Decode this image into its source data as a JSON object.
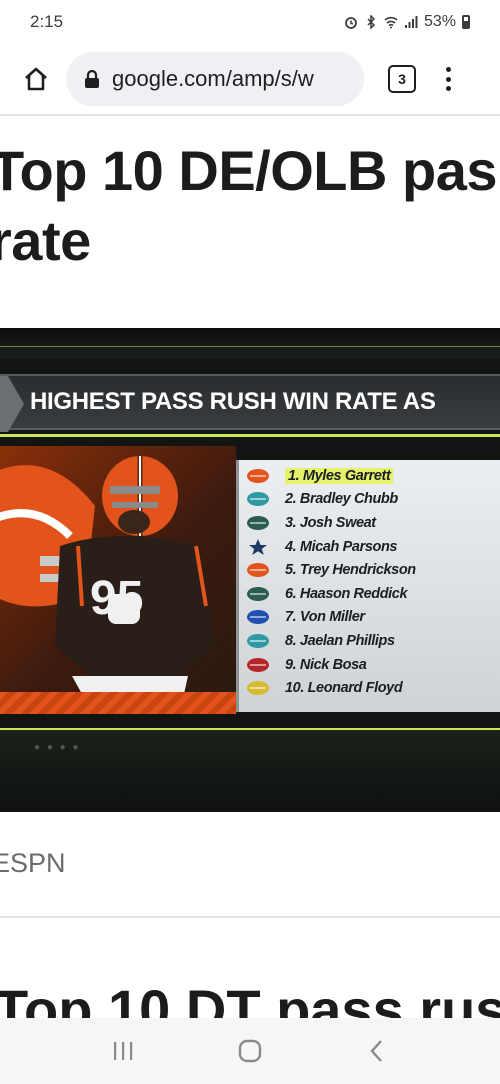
{
  "status_bar": {
    "time": "2:15",
    "battery": "53%"
  },
  "toolbar": {
    "url": "google.com/amp/s/w",
    "tab_count": "3"
  },
  "article": {
    "title_line1": "Top 10 DE/OLB pas",
    "title_line2": "rate",
    "image": {
      "banner": "HIGHEST PASS RUSH WIN RATE AS",
      "jersey_number": "95",
      "rankings": [
        {
          "text": "1. Myles Garrett",
          "team_icon": "browns-helmet-icon",
          "color": "#e2541b"
        },
        {
          "text": "2. Bradley Chubb",
          "team_icon": "dolphins-icon",
          "color": "#2f9aa3"
        },
        {
          "text": "3. Josh Sweat",
          "team_icon": "eagles-icon",
          "color": "#2a5d4f"
        },
        {
          "text": "4. Micah Parsons",
          "team_icon": "cowboys-star-icon",
          "color": "#1d3a66"
        },
        {
          "text": "5. Trey Hendrickson",
          "team_icon": "bengals-icon",
          "color": "#e2541b"
        },
        {
          "text": "6. Haason Reddick",
          "team_icon": "eagles-icon",
          "color": "#2a5d4f"
        },
        {
          "text": "7. Von Miller",
          "team_icon": "bills-icon",
          "color": "#1f4fb0"
        },
        {
          "text": "8. Jaelan Phillips",
          "team_icon": "dolphins-icon",
          "color": "#2f9aa3"
        },
        {
          "text": "9. Nick Bosa",
          "team_icon": "49ers-icon",
          "color": "#b5262b"
        },
        {
          "text": "10. Leonard Floyd",
          "team_icon": "rams-icon",
          "color": "#d8b930"
        }
      ]
    },
    "caption": "ESPN",
    "next_title": "Top 10 DT pass rus"
  }
}
